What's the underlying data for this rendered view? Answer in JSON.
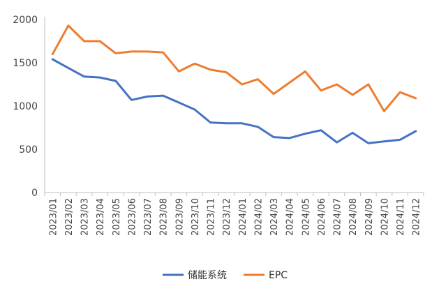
{
  "chart_data": {
    "type": "line",
    "title": "",
    "xlabel": "",
    "ylabel": "",
    "ylim": [
      0,
      2000
    ],
    "yticks": [
      0,
      500,
      1000,
      1500,
      2000
    ],
    "grid": false,
    "legend_position": "bottom",
    "categories": [
      "2023/01",
      "2023/02",
      "2023/03",
      "2023/04",
      "2023/05",
      "2023/06",
      "2023/07",
      "2023/08",
      "2023/09",
      "2023/10",
      "2023/11",
      "2023/12",
      "2024/01",
      "2024/02",
      "2024/03",
      "2024/04",
      "2024/05",
      "2024/06",
      "2024/07",
      "2024/08",
      "2024/09",
      "2024/10",
      "2024/11",
      "2024/12"
    ],
    "series": [
      {
        "name": "储能系统",
        "color": "#4472C4",
        "values": [
          1540,
          1440,
          1340,
          1330,
          1290,
          1070,
          1110,
          1120,
          1040,
          960,
          810,
          800,
          800,
          760,
          640,
          630,
          680,
          720,
          580,
          690,
          570,
          590,
          610,
          710
        ]
      },
      {
        "name": "EPC",
        "color": "#ED7D31",
        "values": [
          1600,
          1930,
          1750,
          1750,
          1610,
          1630,
          1630,
          1620,
          1400,
          1490,
          1420,
          1390,
          1250,
          1310,
          1140,
          1270,
          1400,
          1180,
          1250,
          1130,
          1250,
          940,
          1160,
          1090
        ]
      }
    ]
  }
}
